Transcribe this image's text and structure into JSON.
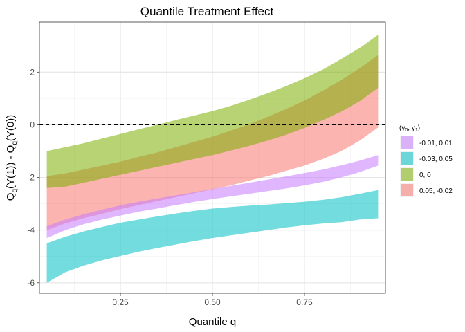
{
  "chart_data": {
    "type": "area",
    "title": "Quantile Treatment Effect",
    "xlabel": "Quantile q",
    "ylabel_parts": {
      "q1": "q",
      "mid": "(Y(1)) - Q",
      "q2": "q",
      "end": "(Y(0))",
      "lead": "Q"
    },
    "xlim": [
      0.03,
      0.97
    ],
    "ylim": [
      -6.4,
      3.9
    ],
    "x_ticks": [
      0.25,
      0.5,
      0.75
    ],
    "x_tick_labels": [
      "0.25",
      "0.50",
      "0.75"
    ],
    "y_ticks": [
      -6,
      -4,
      -2,
      0,
      2
    ],
    "y_tick_labels": [
      "-6",
      "-4",
      "-2",
      "0",
      "2"
    ],
    "grid": true,
    "reference_line": {
      "y": 0,
      "style": "dashed"
    },
    "legend": {
      "position": "right",
      "title_parts": {
        "open": "(",
        "g0": "γ",
        "s0": "0",
        "sep": ", ",
        "g1": "γ",
        "s1": "1",
        "close": ")"
      }
    },
    "x": [
      0.05,
      0.1,
      0.15,
      0.2,
      0.25,
      0.3,
      0.35,
      0.4,
      0.45,
      0.5,
      0.55,
      0.6,
      0.65,
      0.7,
      0.75,
      0.8,
      0.85,
      0.9,
      0.95
    ],
    "series": [
      {
        "name": "0.05, -0.02",
        "color": "#F8766D",
        "lower": [
          -4.0,
          -3.75,
          -3.55,
          -3.38,
          -3.2,
          -3.05,
          -2.9,
          -2.75,
          -2.6,
          -2.45,
          -2.3,
          -2.12,
          -1.95,
          -1.75,
          -1.55,
          -1.3,
          -1.0,
          -0.6,
          -0.1
        ],
        "upper": [
          -1.95,
          -1.85,
          -1.7,
          -1.55,
          -1.4,
          -1.22,
          -1.05,
          -0.85,
          -0.65,
          -0.45,
          -0.22,
          0.02,
          0.3,
          0.6,
          0.92,
          1.3,
          1.7,
          2.15,
          2.65
        ]
      },
      {
        "name": "0, 0",
        "color": "#7CAE00",
        "lower": [
          -2.4,
          -2.35,
          -2.2,
          -2.05,
          -1.9,
          -1.75,
          -1.6,
          -1.45,
          -1.3,
          -1.15,
          -0.98,
          -0.8,
          -0.6,
          -0.38,
          -0.12,
          0.18,
          0.5,
          0.9,
          1.4
        ],
        "upper": [
          -1.0,
          -0.85,
          -0.7,
          -0.52,
          -0.35,
          -0.17,
          0.0,
          0.18,
          0.35,
          0.52,
          0.72,
          0.95,
          1.2,
          1.47,
          1.77,
          2.1,
          2.5,
          2.92,
          3.42
        ]
      },
      {
        "name": "-0.03, 0.05",
        "color": "#00BFC4",
        "lower": [
          -6.0,
          -5.6,
          -5.35,
          -5.15,
          -4.98,
          -4.82,
          -4.68,
          -4.55,
          -4.42,
          -4.3,
          -4.2,
          -4.1,
          -4.0,
          -3.9,
          -3.82,
          -3.75,
          -3.7,
          -3.6,
          -3.55
        ],
        "upper": [
          -4.5,
          -4.25,
          -4.05,
          -3.88,
          -3.72,
          -3.6,
          -3.48,
          -3.37,
          -3.27,
          -3.18,
          -3.12,
          -3.07,
          -3.03,
          -2.98,
          -2.92,
          -2.85,
          -2.75,
          -2.62,
          -2.48
        ]
      },
      {
        "name": "-0.01, 0.01",
        "color": "#C77CFF",
        "lower": [
          -4.3,
          -4.0,
          -3.78,
          -3.6,
          -3.45,
          -3.3,
          -3.18,
          -3.05,
          -2.93,
          -2.82,
          -2.72,
          -2.62,
          -2.52,
          -2.42,
          -2.3,
          -2.17,
          -2.0,
          -1.8,
          -1.55
        ],
        "upper": [
          -3.85,
          -3.6,
          -3.4,
          -3.22,
          -3.06,
          -2.92,
          -2.8,
          -2.68,
          -2.56,
          -2.44,
          -2.32,
          -2.2,
          -2.08,
          -1.96,
          -1.83,
          -1.7,
          -1.54,
          -1.36,
          -1.15
        ]
      }
    ],
    "legend_order": [
      "-0.01, 0.01",
      "-0.03, 0.05",
      "0, 0",
      "0.05, -0.02"
    ]
  }
}
